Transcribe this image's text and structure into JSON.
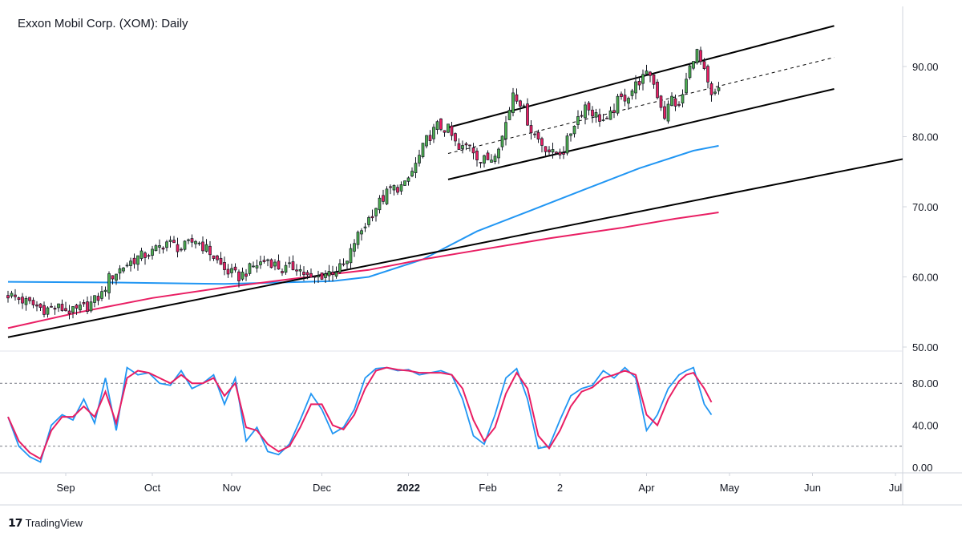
{
  "header": {
    "title": "Exxon Mobil Corp. (XOM): Daily"
  },
  "footer": {
    "brand": "TradingView"
  },
  "colors": {
    "up": "#26a69a",
    "up_fill": "#4caf50",
    "down": "#e91e63",
    "ma_fast": "#2196f3",
    "ma_slow": "#e91e63",
    "stoch_k": "#2196f3",
    "stoch_d": "#e91e63",
    "trendline": "#000000"
  },
  "chart_data": [
    {
      "type": "candlestick",
      "title": "Exxon Mobil Corp. (XOM): Daily",
      "x_tick_labels": [
        "Sep",
        "Oct",
        "Nov",
        "Dec",
        "2022",
        "Feb",
        "2",
        "Apr",
        "May",
        "Jun",
        "Jul"
      ],
      "y_tick_labels": [
        "50.00",
        "60.00",
        "70.00",
        "80.00",
        "90.00"
      ],
      "ylim": [
        50,
        96
      ],
      "grid": false,
      "price_path": [
        [
          0,
          57.5
        ],
        [
          6,
          56.2
        ],
        [
          10,
          55.4
        ],
        [
          14,
          55.6
        ],
        [
          18,
          55.0
        ],
        [
          22,
          55.8
        ],
        [
          26,
          57.5
        ],
        [
          28,
          59.8
        ],
        [
          32,
          61.5
        ],
        [
          36,
          62.8
        ],
        [
          40,
          63.5
        ],
        [
          44,
          65.0
        ],
        [
          48,
          64.0
        ],
        [
          52,
          65.3
        ],
        [
          56,
          63.5
        ],
        [
          60,
          61.0
        ],
        [
          62,
          60.5
        ],
        [
          64,
          60.0
        ],
        [
          68,
          61.5
        ],
        [
          72,
          62.5
        ],
        [
          76,
          61.0
        ],
        [
          80,
          61.5
        ],
        [
          84,
          59.5
        ],
        [
          88,
          60.5
        ],
        [
          92,
          61.2
        ],
        [
          94,
          62.0
        ],
        [
          96,
          65.0
        ],
        [
          99,
          67.5
        ],
        [
          102,
          70.0
        ],
        [
          106,
          72.5
        ],
        [
          110,
          73.0
        ],
        [
          113,
          76.0
        ],
        [
          116,
          79.5
        ],
        [
          119,
          81.5
        ],
        [
          122,
          81.0
        ],
        [
          125,
          78.0
        ],
        [
          128,
          79.0
        ],
        [
          131,
          76.5
        ],
        [
          134,
          77.0
        ],
        [
          137,
          80.0
        ],
        [
          139,
          84.0
        ],
        [
          140,
          86.5
        ],
        [
          142,
          85.0
        ],
        [
          145,
          81.0
        ],
        [
          148,
          79.0
        ],
        [
          151,
          77.5
        ],
        [
          154,
          78.0
        ],
        [
          157,
          82.0
        ],
        [
          160,
          84.5
        ],
        [
          163,
          83.0
        ],
        [
          166,
          82.0
        ],
        [
          169,
          85.0
        ],
        [
          172,
          86.0
        ],
        [
          175,
          88.0
        ],
        [
          178,
          89.0
        ],
        [
          180,
          86.0
        ],
        [
          182,
          83.0
        ],
        [
          184,
          85.5
        ],
        [
          186,
          84.0
        ],
        [
          188,
          88.0
        ],
        [
          190,
          91.5
        ],
        [
          191,
          92.0
        ],
        [
          193,
          89.0
        ],
        [
          195,
          85.5
        ],
        [
          197,
          86.5
        ]
      ],
      "moving_averages": [
        {
          "name": "",
          "color": "#2196f3",
          "points": [
            [
              0,
              59.3
            ],
            [
              30,
              59.2
            ],
            [
              60,
              59.0
            ],
            [
              90,
              59.4
            ],
            [
              100,
              60.0
            ],
            [
              115,
              62.5
            ],
            [
              130,
              66.5
            ],
            [
              145,
              69.5
            ],
            [
              160,
              72.5
            ],
            [
              175,
              75.5
            ],
            [
              190,
              78.0
            ],
            [
              197,
              78.7
            ]
          ]
        },
        {
          "name": "",
          "color": "#e91e63",
          "points": [
            [
              0,
              52.7
            ],
            [
              20,
              55.0
            ],
            [
              40,
              57.0
            ],
            [
              60,
              58.5
            ],
            [
              80,
              59.8
            ],
            [
              100,
              61.0
            ],
            [
              115,
              62.5
            ],
            [
              130,
              63.8
            ],
            [
              150,
              65.5
            ],
            [
              170,
              67.0
            ],
            [
              185,
              68.3
            ],
            [
              197,
              69.2
            ]
          ]
        }
      ],
      "trendlines": [
        {
          "style": "solid",
          "points": [
            [
              0,
              51.4
            ],
            [
              248,
              76.8
            ]
          ]
        },
        {
          "style": "solid",
          "points": [
            [
              122,
              81.3
            ],
            [
              229,
              95.8
            ]
          ]
        },
        {
          "style": "dashed",
          "points": [
            [
              122,
              77.6
            ],
            [
              229,
              91.3
            ]
          ]
        },
        {
          "style": "solid",
          "points": [
            [
              122,
              73.9
            ],
            [
              229,
              86.8
            ]
          ]
        }
      ]
    },
    {
      "type": "line",
      "title": "",
      "y_tick_labels": [
        "0.00",
        "40.00",
        "80.00"
      ],
      "ylim": [
        -3,
        100
      ],
      "reference_lines": [
        80,
        20
      ],
      "series": [
        {
          "name": "",
          "color": "#2196f3",
          "values": [
            [
              0,
              48
            ],
            [
              3,
              20
            ],
            [
              6,
              10
            ],
            [
              9,
              5
            ],
            [
              12,
              40
            ],
            [
              15,
              50
            ],
            [
              18,
              45
            ],
            [
              21,
              65
            ],
            [
              24,
              42
            ],
            [
              27,
              85
            ],
            [
              30,
              35
            ],
            [
              33,
              95
            ],
            [
              36,
              88
            ],
            [
              39,
              90
            ],
            [
              42,
              80
            ],
            [
              45,
              78
            ],
            [
              48,
              92
            ],
            [
              51,
              75
            ],
            [
              54,
              80
            ],
            [
              57,
              88
            ],
            [
              60,
              60
            ],
            [
              63,
              85
            ],
            [
              66,
              25
            ],
            [
              69,
              38
            ],
            [
              72,
              15
            ],
            [
              75,
              12
            ],
            [
              78,
              22
            ],
            [
              81,
              45
            ],
            [
              84,
              70
            ],
            [
              87,
              55
            ],
            [
              90,
              32
            ],
            [
              93,
              38
            ],
            [
              96,
              55
            ],
            [
              99,
              85
            ],
            [
              102,
              94
            ],
            [
              105,
              95
            ],
            [
              108,
              92
            ],
            [
              111,
              93
            ],
            [
              114,
              88
            ],
            [
              117,
              90
            ],
            [
              120,
              92
            ],
            [
              123,
              88
            ],
            [
              126,
              65
            ],
            [
              129,
              30
            ],
            [
              132,
              22
            ],
            [
              135,
              50
            ],
            [
              138,
              85
            ],
            [
              141,
              94
            ],
            [
              144,
              65
            ],
            [
              147,
              18
            ],
            [
              150,
              20
            ],
            [
              153,
              45
            ],
            [
              156,
              68
            ],
            [
              159,
              75
            ],
            [
              162,
              78
            ],
            [
              165,
              92
            ],
            [
              168,
              85
            ],
            [
              171,
              95
            ],
            [
              174,
              85
            ],
            [
              177,
              35
            ],
            [
              180,
              50
            ],
            [
              183,
              75
            ],
            [
              186,
              88
            ],
            [
              188,
              92
            ],
            [
              190,
              95
            ],
            [
              193,
              60
            ],
            [
              195,
              50
            ]
          ]
        },
        {
          "name": "",
          "color": "#e91e63",
          "values": [
            [
              0,
              48
            ],
            [
              3,
              25
            ],
            [
              6,
              14
            ],
            [
              9,
              8
            ],
            [
              12,
              35
            ],
            [
              15,
              48
            ],
            [
              18,
              48
            ],
            [
              21,
              58
            ],
            [
              24,
              48
            ],
            [
              27,
              72
            ],
            [
              30,
              42
            ],
            [
              33,
              85
            ],
            [
              36,
              92
            ],
            [
              39,
              90
            ],
            [
              42,
              85
            ],
            [
              45,
              80
            ],
            [
              48,
              88
            ],
            [
              51,
              80
            ],
            [
              54,
              80
            ],
            [
              57,
              85
            ],
            [
              60,
              68
            ],
            [
              63,
              80
            ],
            [
              66,
              38
            ],
            [
              69,
              35
            ],
            [
              72,
              22
            ],
            [
              75,
              15
            ],
            [
              78,
              20
            ],
            [
              81,
              38
            ],
            [
              84,
              60
            ],
            [
              87,
              60
            ],
            [
              90,
              40
            ],
            [
              93,
              36
            ],
            [
              96,
              50
            ],
            [
              99,
              75
            ],
            [
              102,
              92
            ],
            [
              105,
              95
            ],
            [
              108,
              93
            ],
            [
              111,
              92
            ],
            [
              114,
              90
            ],
            [
              117,
              90
            ],
            [
              120,
              90
            ],
            [
              123,
              88
            ],
            [
              126,
              75
            ],
            [
              129,
              45
            ],
            [
              132,
              25
            ],
            [
              135,
              38
            ],
            [
              138,
              70
            ],
            [
              141,
              90
            ],
            [
              144,
              75
            ],
            [
              147,
              30
            ],
            [
              150,
              18
            ],
            [
              153,
              35
            ],
            [
              156,
              58
            ],
            [
              159,
              72
            ],
            [
              162,
              76
            ],
            [
              165,
              85
            ],
            [
              168,
              88
            ],
            [
              171,
              92
            ],
            [
              174,
              88
            ],
            [
              177,
              50
            ],
            [
              180,
              40
            ],
            [
              183,
              65
            ],
            [
              186,
              82
            ],
            [
              188,
              88
            ],
            [
              190,
              90
            ],
            [
              193,
              75
            ],
            [
              195,
              62
            ]
          ]
        }
      ]
    }
  ]
}
